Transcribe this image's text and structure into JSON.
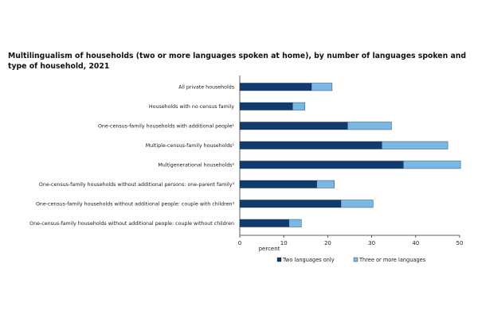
{
  "chart_data": {
    "type": "bar",
    "orientation": "horizontal",
    "stacked": true,
    "title": "Multilingualism of households (two or more languages spoken at home), by number of languages spoken and type of household, 2021",
    "xlabel": "percent",
    "ylabel": "",
    "xlim": [
      0,
      50
    ],
    "xticks": [
      0,
      10,
      20,
      30,
      40,
      50
    ],
    "grid": false,
    "legend_position": "bottom",
    "categories": [
      "All private households",
      "Households with no census family",
      "One-census-family households with additional people¹",
      "Multiple-census-family households¹",
      "Multigenerational households²",
      "One-census-family households without additional persons: one-parent family³",
      "One-census-family households without additional people: couple with children³",
      "One-census-family households without additional people: couple without children"
    ],
    "series": [
      {
        "name": "Two languages only",
        "color": "#123b6d",
        "values": [
          16.3,
          12.0,
          24.5,
          32.3,
          37.2,
          17.5,
          23.0,
          11.2
        ]
      },
      {
        "name": "Three or more languages",
        "color": "#7ab8e4",
        "values": [
          4.7,
          2.8,
          10.0,
          15.0,
          13.0,
          4.0,
          7.3,
          2.8
        ]
      }
    ]
  }
}
